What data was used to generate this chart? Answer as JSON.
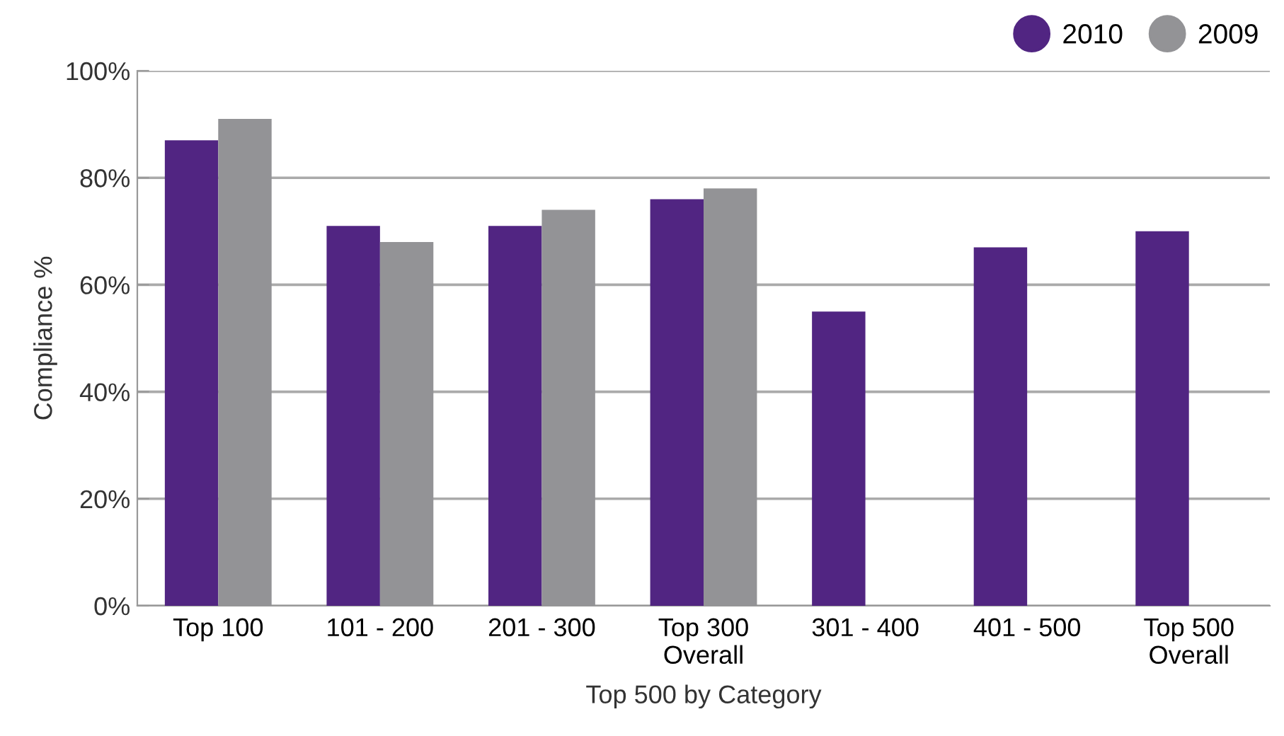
{
  "chart_data": {
    "type": "bar",
    "xlabel": "Top 500 by Category",
    "ylabel": "Compliance %",
    "categories": [
      "Top 100",
      "101 - 200",
      "201 - 300",
      "Top 300\nOverall",
      "301 - 400",
      "401 - 500",
      "Top 500\nOverall"
    ],
    "series": [
      {
        "name": "2010",
        "color": "#512582",
        "values": [
          87,
          71,
          71,
          76,
          55,
          67,
          70
        ]
      },
      {
        "name": "2009",
        "color": "#939396",
        "values": [
          91,
          68,
          74,
          78,
          null,
          null,
          null
        ]
      }
    ],
    "ylim": [
      0,
      100
    ],
    "yticks": [
      {
        "value": 0,
        "label": "0%"
      },
      {
        "value": 20,
        "label": "20%"
      },
      {
        "value": 40,
        "label": "40%"
      },
      {
        "value": 60,
        "label": "60%"
      },
      {
        "value": 80,
        "label": "80%"
      },
      {
        "value": 100,
        "label": "100%"
      }
    ],
    "grid": "y",
    "legend": "top right",
    "marker": "circle"
  }
}
